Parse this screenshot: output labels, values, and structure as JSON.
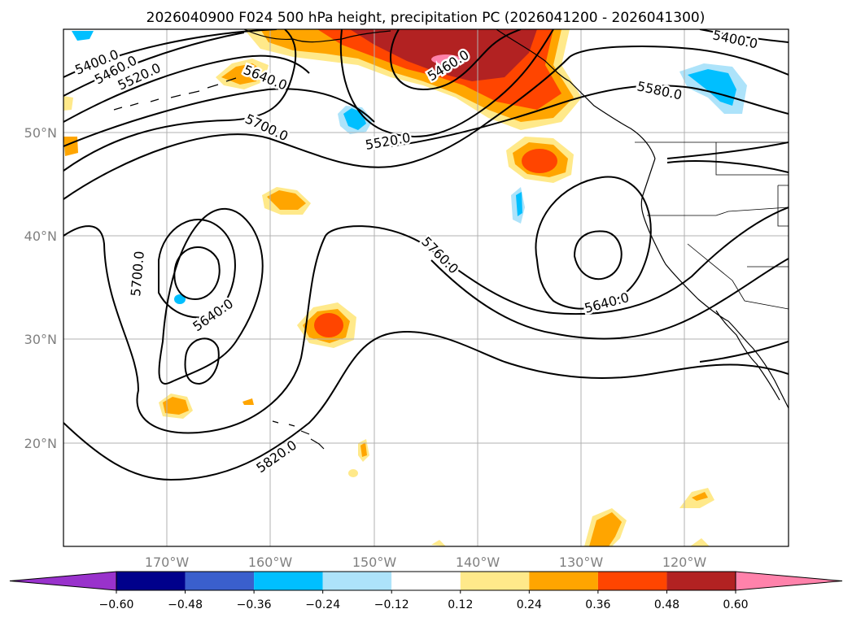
{
  "title": "2026040900 F024 500 hPa height, precipitation PC (2026041200 - 2026041300)",
  "map": {
    "lon_range": [
      -180,
      -110
    ],
    "lat_range": [
      10,
      60
    ],
    "grid": true,
    "lon_ticks": [
      "170°W",
      "160°W",
      "150°W",
      "140°W",
      "130°W",
      "120°W"
    ],
    "lat_ticks": [
      "50°N",
      "40°N",
      "30°N",
      "20°N"
    ]
  },
  "contour_labels": [
    "5400.0",
    "5460.0",
    "5520.0",
    "5640.0",
    "5700.0",
    "5520.0",
    "5460.0",
    "5400.0",
    "5580.0",
    "5700.0",
    "5760.0",
    "5640.0",
    "5640.0",
    "5820.0"
  ],
  "colorbar": {
    "ticks": [
      "−0.60",
      "−0.48",
      "−0.36",
      "−0.24",
      "−0.12",
      "0.12",
      "0.24",
      "0.36",
      "0.48",
      "0.60"
    ],
    "colors": [
      "#9932cc",
      "#00008b",
      "#3a5fcd",
      "#00bfff",
      "#ade3fa",
      "#ffffff",
      "#ffe98a",
      "#ffa500",
      "#ff4500",
      "#b22222",
      "#ff82ab"
    ],
    "extend": "both"
  },
  "colors": {
    "land_outline": "#000000",
    "contour": "#000000",
    "grid": "#b0b0b0"
  }
}
